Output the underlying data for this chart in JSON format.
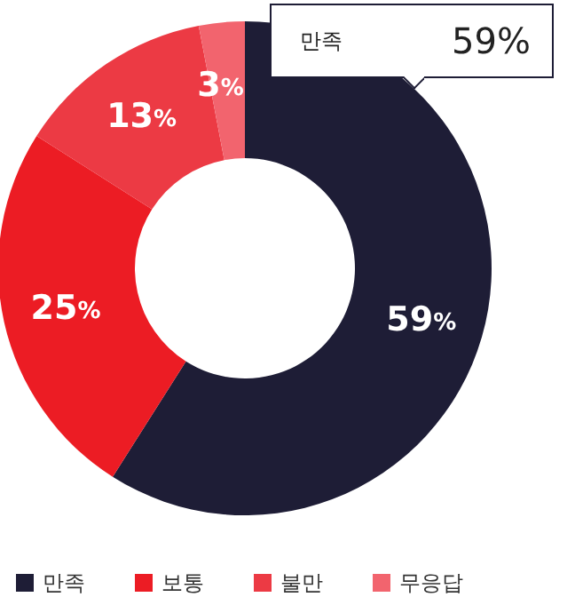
{
  "chart_data": {
    "type": "donut",
    "categories": [
      "만족",
      "보통",
      "불만",
      "무응답"
    ],
    "values": [
      59,
      25,
      13,
      3
    ],
    "colors": [
      "#1e1d36",
      "#ec1c24",
      "#ec3a44",
      "#f2646e"
    ],
    "value_labels": [
      "59%",
      "25%",
      "13%",
      "3%"
    ],
    "legend": "bottom left",
    "annotations": [
      "만족",
      "59%"
    ]
  }
}
